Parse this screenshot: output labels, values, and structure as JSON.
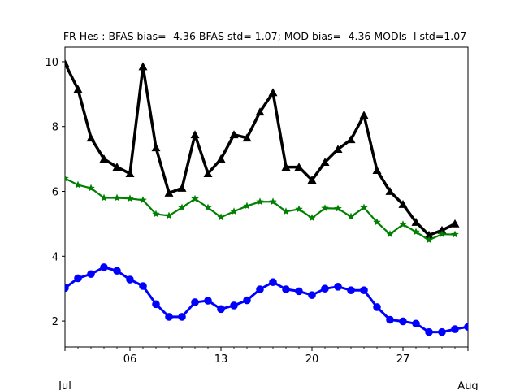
{
  "chart_data": {
    "type": "line",
    "title": "FR-Hes   : BFAS bias= -4.36 BFAS std= 1.07; MOD bias= -4.36 MODls -l std=1.07",
    "xlabel": "",
    "ylabel": "",
    "x": [
      "2020-07-01",
      "2020-07-02",
      "2020-07-03",
      "2020-07-04",
      "2020-07-05",
      "2020-07-06",
      "2020-07-07",
      "2020-07-08",
      "2020-07-09",
      "2020-07-10",
      "2020-07-11",
      "2020-07-12",
      "2020-07-13",
      "2020-07-14",
      "2020-07-15",
      "2020-07-16",
      "2020-07-17",
      "2020-07-18",
      "2020-07-19",
      "2020-07-20",
      "2020-07-21",
      "2020-07-22",
      "2020-07-23",
      "2020-07-24",
      "2020-07-25",
      "2020-07-26",
      "2020-07-27",
      "2020-07-28",
      "2020-07-29",
      "2020-07-30",
      "2020-07-31",
      "2020-08-01"
    ],
    "xlim": [
      "2020-07-01",
      "2020-08-01"
    ],
    "ylim": [
      1.2,
      10.45
    ],
    "x_ticks": [
      {
        "date": "2020-07-06",
        "label": "06"
      },
      {
        "date": "2020-07-13",
        "label": "13"
      },
      {
        "date": "2020-07-20",
        "label": "20"
      },
      {
        "date": "2020-07-27",
        "label": "27"
      }
    ],
    "x_secondary_labels": [
      {
        "date": "2020-07-01",
        "label": "Jul"
      },
      {
        "date": "2020-08-01",
        "label": "Aug"
      }
    ],
    "y_ticks": [
      2,
      4,
      6,
      8,
      10
    ],
    "grid": false,
    "legend": false,
    "series": [
      {
        "key": "black-triangle",
        "color": "#000000",
        "marker": "triangle",
        "values": [
          9.95,
          9.15,
          7.65,
          7.0,
          6.75,
          6.55,
          9.85,
          7.35,
          5.95,
          6.1,
          7.75,
          6.55,
          7.0,
          7.75,
          7.65,
          8.45,
          9.05,
          6.75,
          6.75,
          6.35,
          6.9,
          7.3,
          7.6,
          8.35,
          6.65,
          6.0,
          5.6,
          5.05,
          4.65,
          4.8,
          5.0,
          null
        ]
      },
      {
        "key": "green-star",
        "color": "#008000",
        "marker": "star",
        "values": [
          6.4,
          6.2,
          6.1,
          5.8,
          5.8,
          5.78,
          5.73,
          5.3,
          5.25,
          5.5,
          5.77,
          5.5,
          5.2,
          5.38,
          5.55,
          5.68,
          5.68,
          5.38,
          5.45,
          5.18,
          5.48,
          5.47,
          5.22,
          5.5,
          5.05,
          4.68,
          4.98,
          4.75,
          4.5,
          4.68,
          4.67,
          null
        ]
      },
      {
        "key": "blue-circle",
        "color": "#0000ff",
        "marker": "circle",
        "values": [
          3.02,
          3.32,
          3.45,
          3.66,
          3.55,
          3.28,
          3.08,
          2.52,
          2.13,
          2.13,
          2.58,
          2.63,
          2.37,
          2.48,
          2.64,
          2.98,
          3.2,
          2.98,
          2.92,
          2.8,
          3.0,
          3.06,
          2.95,
          2.95,
          2.43,
          2.04,
          1.99,
          1.92,
          1.66,
          1.66,
          1.75,
          1.82
        ]
      }
    ]
  }
}
